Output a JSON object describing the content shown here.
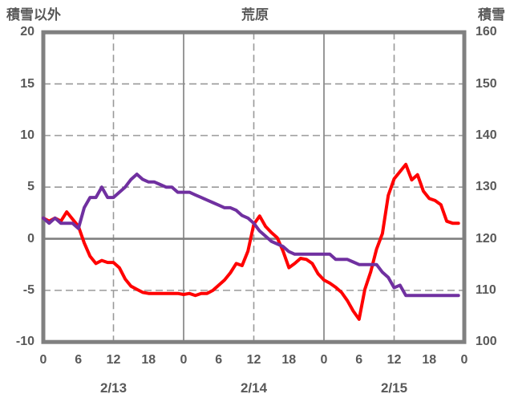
{
  "header": {
    "left_axis_title": "積雪以外",
    "chart_title": "荒原",
    "right_axis_title": "積雪"
  },
  "colors": {
    "red_line": "#ff0000",
    "purple_line": "#7030a0",
    "border_gray": "#808080",
    "grid_dashed_gray": "#999999",
    "grid_solid_gray": "#8c8c8c",
    "text_gray": "#595959"
  },
  "chart_data": {
    "type": "line",
    "title": "荒原",
    "left_axis": {
      "title": "積雪以外",
      "ticks": [
        20,
        15,
        10,
        5,
        0,
        -5,
        -10
      ],
      "range": [
        -10,
        20
      ]
    },
    "right_axis": {
      "title": "積雪",
      "ticks": [
        160,
        150,
        140,
        130,
        120,
        110,
        100
      ],
      "range": [
        100,
        160
      ]
    },
    "x_axis": {
      "range_hours": [
        0,
        72
      ],
      "tick_interval_hours": 6,
      "tick_labels": [
        "0",
        "6",
        "12",
        "18",
        "0",
        "6",
        "12",
        "18",
        "0",
        "6",
        "12",
        "18",
        "0"
      ],
      "date_labels": [
        "2/13",
        "2/14",
        "2/15"
      ]
    },
    "grid": {
      "horizontal_dashed_at_left_values": [
        15,
        10,
        5,
        -5
      ],
      "horizontal_solid_at_left_values": [
        0
      ],
      "vertical_dashed_at_hours": [
        12,
        36,
        60
      ],
      "vertical_solid_at_hours": [
        24,
        48
      ]
    },
    "series": [
      {
        "name": "積雪以外",
        "axis": "left",
        "color": "#ff0000",
        "interval_hours": 1,
        "values": [
          2.0,
          1.7,
          2.0,
          1.7,
          2.6,
          1.9,
          1.2,
          -0.4,
          -1.7,
          -2.4,
          -2.1,
          -2.3,
          -2.3,
          -2.8,
          -3.9,
          -4.6,
          -4.9,
          -5.2,
          -5.3,
          -5.3,
          -5.3,
          -5.3,
          -5.3,
          -5.3,
          -5.4,
          -5.3,
          -5.5,
          -5.3,
          -5.3,
          -5.0,
          -4.5,
          -4.0,
          -3.3,
          -2.4,
          -2.6,
          -1.2,
          1.4,
          2.2,
          1.2,
          0.6,
          0.1,
          -1.2,
          -2.8,
          -2.4,
          -1.9,
          -2.0,
          -2.4,
          -3.4,
          -4.0,
          -4.3,
          -4.7,
          -5.2,
          -6.0,
          -7.0,
          -7.8,
          -4.9,
          -3.2,
          -1.0,
          0.5,
          4.2,
          5.8,
          6.5,
          7.2,
          5.7,
          6.2,
          4.6,
          3.9,
          3.7,
          3.3,
          1.7,
          1.5,
          1.5
        ]
      },
      {
        "name": "積雪",
        "axis": "right",
        "color": "#7030a0",
        "interval_hours": 1,
        "values": [
          124,
          123,
          124,
          123,
          123,
          123,
          122,
          126,
          128,
          128,
          130,
          128,
          128,
          129,
          130,
          131.5,
          132.5,
          131.5,
          131,
          131,
          130.5,
          130,
          130,
          129,
          129,
          129,
          128.5,
          128,
          127.5,
          127,
          126.5,
          126,
          126,
          125.5,
          124.5,
          124,
          123,
          121.5,
          120.5,
          119.5,
          119,
          118.5,
          117.5,
          117,
          117,
          117,
          117,
          117,
          117,
          117,
          116,
          116,
          116,
          115.5,
          115,
          115,
          115,
          115,
          113.5,
          112.5,
          110.5,
          111,
          109,
          109,
          109,
          109,
          109,
          109,
          109,
          109,
          109,
          109
        ]
      }
    ]
  }
}
